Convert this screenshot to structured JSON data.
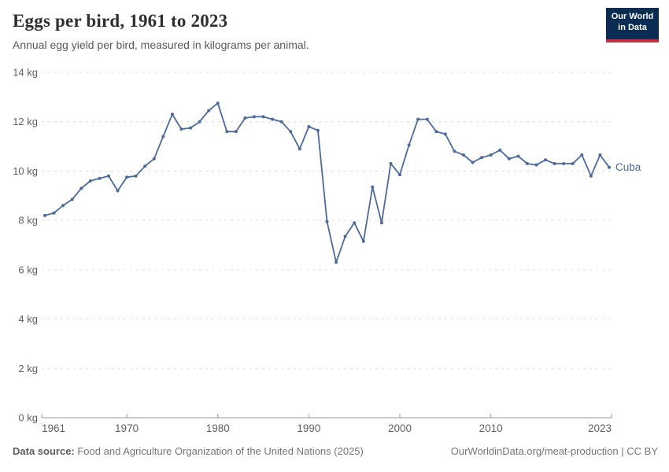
{
  "header": {
    "title": "Eggs per bird, 1961 to 2023",
    "subtitle": "Annual egg yield per bird, measured in kilograms per animal.",
    "logo": {
      "line1": "Our World",
      "line2": "in Data"
    }
  },
  "footer": {
    "source_label": "Data source:",
    "source": " Food and Agriculture Organization of the United Nations (2025)",
    "link": "OurWorldinData.org/meat-production",
    "separator": " | ",
    "license": "CC BY"
  },
  "colors": {
    "series": "#4c6a9c",
    "grid": "#dcdcdc",
    "axis": "#999999",
    "tick_text": "#616161",
    "logo_bg": "#0b2c52",
    "logo_accent": "#c5303e"
  },
  "chart_data": {
    "type": "line",
    "title": "Eggs per bird, 1961 to 2023",
    "subtitle": "Annual egg yield per bird, measured in kilograms per animal.",
    "unit": "kg",
    "ylabel": "",
    "xlabel": "",
    "ylim": [
      0,
      14
    ],
    "yticks": [
      0,
      2,
      4,
      6,
      8,
      10,
      12,
      14
    ],
    "ytick_suffix": " kg",
    "xticks": [
      1961,
      1970,
      1980,
      1990,
      2000,
      2010,
      2023
    ],
    "grid": "horizontal-dashed",
    "legend_position": "end-of-line-label",
    "x": [
      1961,
      1962,
      1963,
      1964,
      1965,
      1966,
      1967,
      1968,
      1969,
      1970,
      1971,
      1972,
      1973,
      1974,
      1975,
      1976,
      1977,
      1978,
      1979,
      1980,
      1981,
      1982,
      1983,
      1984,
      1985,
      1986,
      1987,
      1988,
      1989,
      1990,
      1991,
      1992,
      1993,
      1994,
      1995,
      1996,
      1997,
      1998,
      1999,
      2000,
      2001,
      2002,
      2003,
      2004,
      2005,
      2006,
      2007,
      2008,
      2009,
      2010,
      2011,
      2012,
      2013,
      2014,
      2015,
      2016,
      2017,
      2018,
      2019,
      2020,
      2021,
      2022,
      2023
    ],
    "series": [
      {
        "name": "Cuba",
        "color": "#4c6a9c",
        "values": [
          8.2,
          8.3,
          8.6,
          8.85,
          9.3,
          9.6,
          9.7,
          9.8,
          9.2,
          9.75,
          9.8,
          10.2,
          10.5,
          11.4,
          12.3,
          11.7,
          11.75,
          12.0,
          12.45,
          12.75,
          11.6,
          11.6,
          12.15,
          12.2,
          12.2,
          12.1,
          12.0,
          11.6,
          10.9,
          11.8,
          11.65,
          7.95,
          6.3,
          7.35,
          7.9,
          7.15,
          9.35,
          7.9,
          10.3,
          9.85,
          11.05,
          12.1,
          12.1,
          11.6,
          11.5,
          10.8,
          10.65,
          10.35,
          10.55,
          10.65,
          10.85,
          10.5,
          10.6,
          10.3,
          10.25,
          10.45,
          10.3,
          10.3,
          10.3,
          10.65,
          9.8,
          10.65,
          10.15
        ]
      }
    ]
  }
}
